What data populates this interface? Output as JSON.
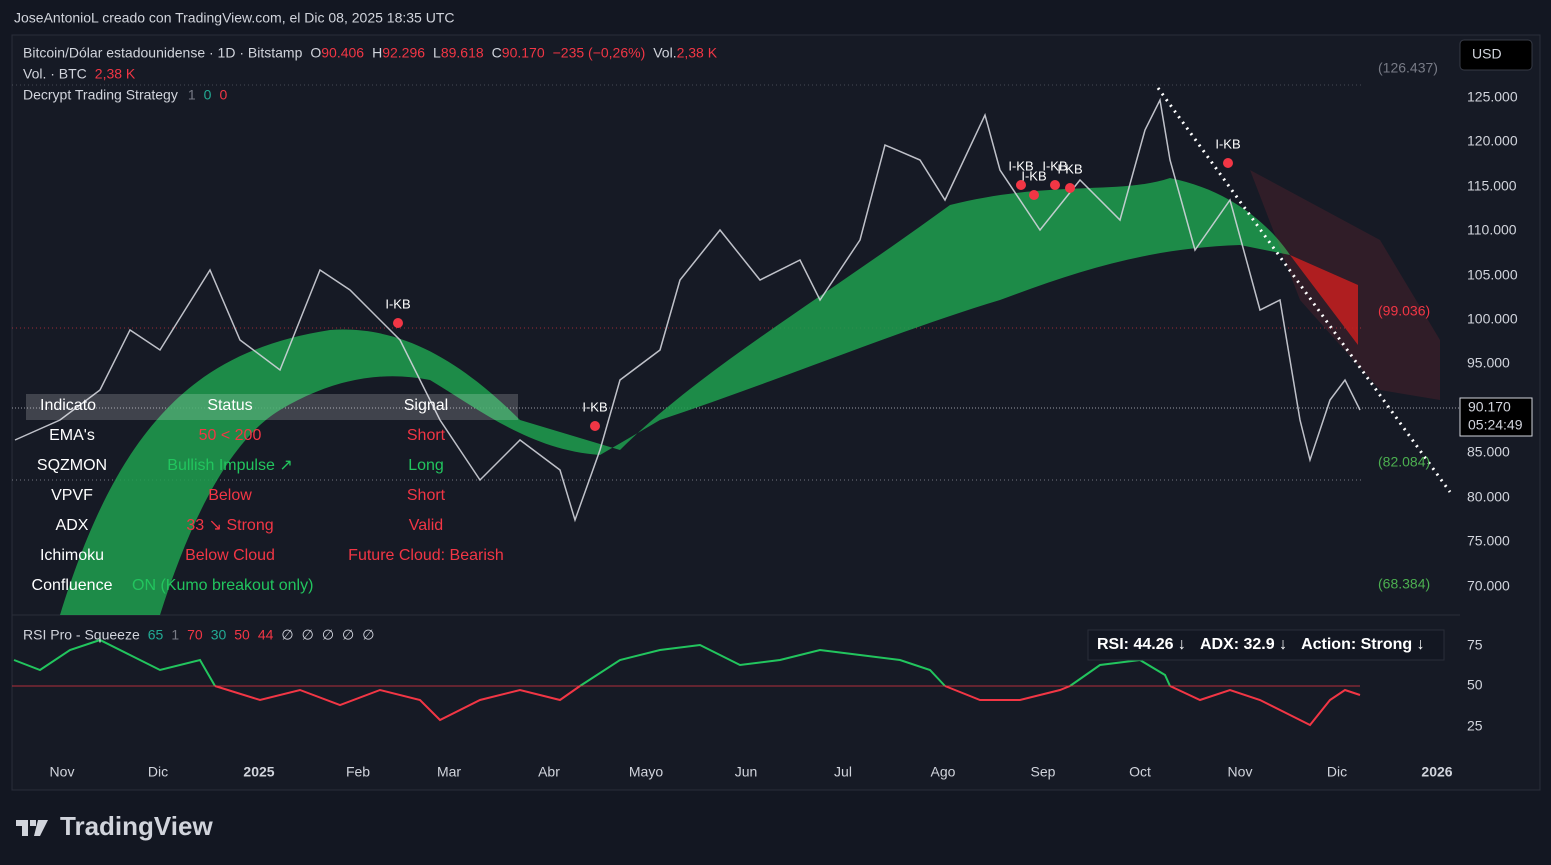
{
  "header": {
    "attribution": "JoseAntonioL creado con TradingView.com, el Dic 08, 2025 18:35 UTC"
  },
  "legend": {
    "symbol": "Bitcoin/Dólar estadounidense · 1D · Bitstamp",
    "open_label": "O",
    "open": "90.406",
    "high_label": "H",
    "high": "92.296",
    "low_label": "L",
    "low": "89.618",
    "close_label": "C",
    "close": "90.170",
    "change": "−235 (−0,26%)",
    "vol_label": "Vol.",
    "vol": "2,38 K",
    "volume_label": "Vol. · BTC",
    "volume_value": "2,38 K",
    "strategy": "Decrypt Trading Strategy",
    "strategy_params": [
      "1",
      "0",
      "0"
    ]
  },
  "currency_button": "USD",
  "price_axis": {
    "labels": [
      "125.000",
      "120.000",
      "115.000",
      "110.000",
      "105.000",
      "100.000",
      "95.000",
      "85.000",
      "80.000",
      "75.000",
      "70.000"
    ],
    "markers": [
      "(126.437)",
      "(99.036)",
      "(82.084)",
      "(68.384)"
    ],
    "last_price": "90.170",
    "countdown": "05:24:49"
  },
  "time_axis": [
    "Nov",
    "Dic",
    "2025",
    "Feb",
    "Mar",
    "Abr",
    "Mayo",
    "Jun",
    "Jul",
    "Ago",
    "Sep",
    "Oct",
    "Nov",
    "Dic",
    "2026"
  ],
  "annotations": [
    "I-KB",
    "I-KB",
    "I-KB",
    "I-KB",
    "I-KB",
    "I-KB",
    "I-KB"
  ],
  "table": {
    "header": [
      "Indicato",
      "Status",
      "Signal"
    ],
    "rows": [
      [
        "EMA's",
        "50 < 200",
        "Short"
      ],
      [
        "SQZMON",
        "Bullish Impulse ↗",
        "Long"
      ],
      [
        "VPVF",
        "Below",
        "Short"
      ],
      [
        "ADX",
        "33 ↘ Strong",
        "Valid"
      ],
      [
        "Ichimoku",
        "Below Cloud",
        "Future Cloud: Bearish"
      ],
      [
        "Confluence",
        "ON (Kumo breakout only)"
      ]
    ]
  },
  "rsi": {
    "title": "RSI Pro - Squeeze",
    "params": [
      "65",
      "1",
      "70",
      "30",
      "50",
      "44",
      "∅",
      "∅",
      "∅",
      "∅",
      "∅"
    ],
    "axis": [
      "75",
      "50",
      "25"
    ],
    "status": [
      "RSI: 44.26 ↓",
      "ADX: 32.9 ↓",
      "Action: Strong ↓"
    ]
  },
  "logo": "TradingView"
}
